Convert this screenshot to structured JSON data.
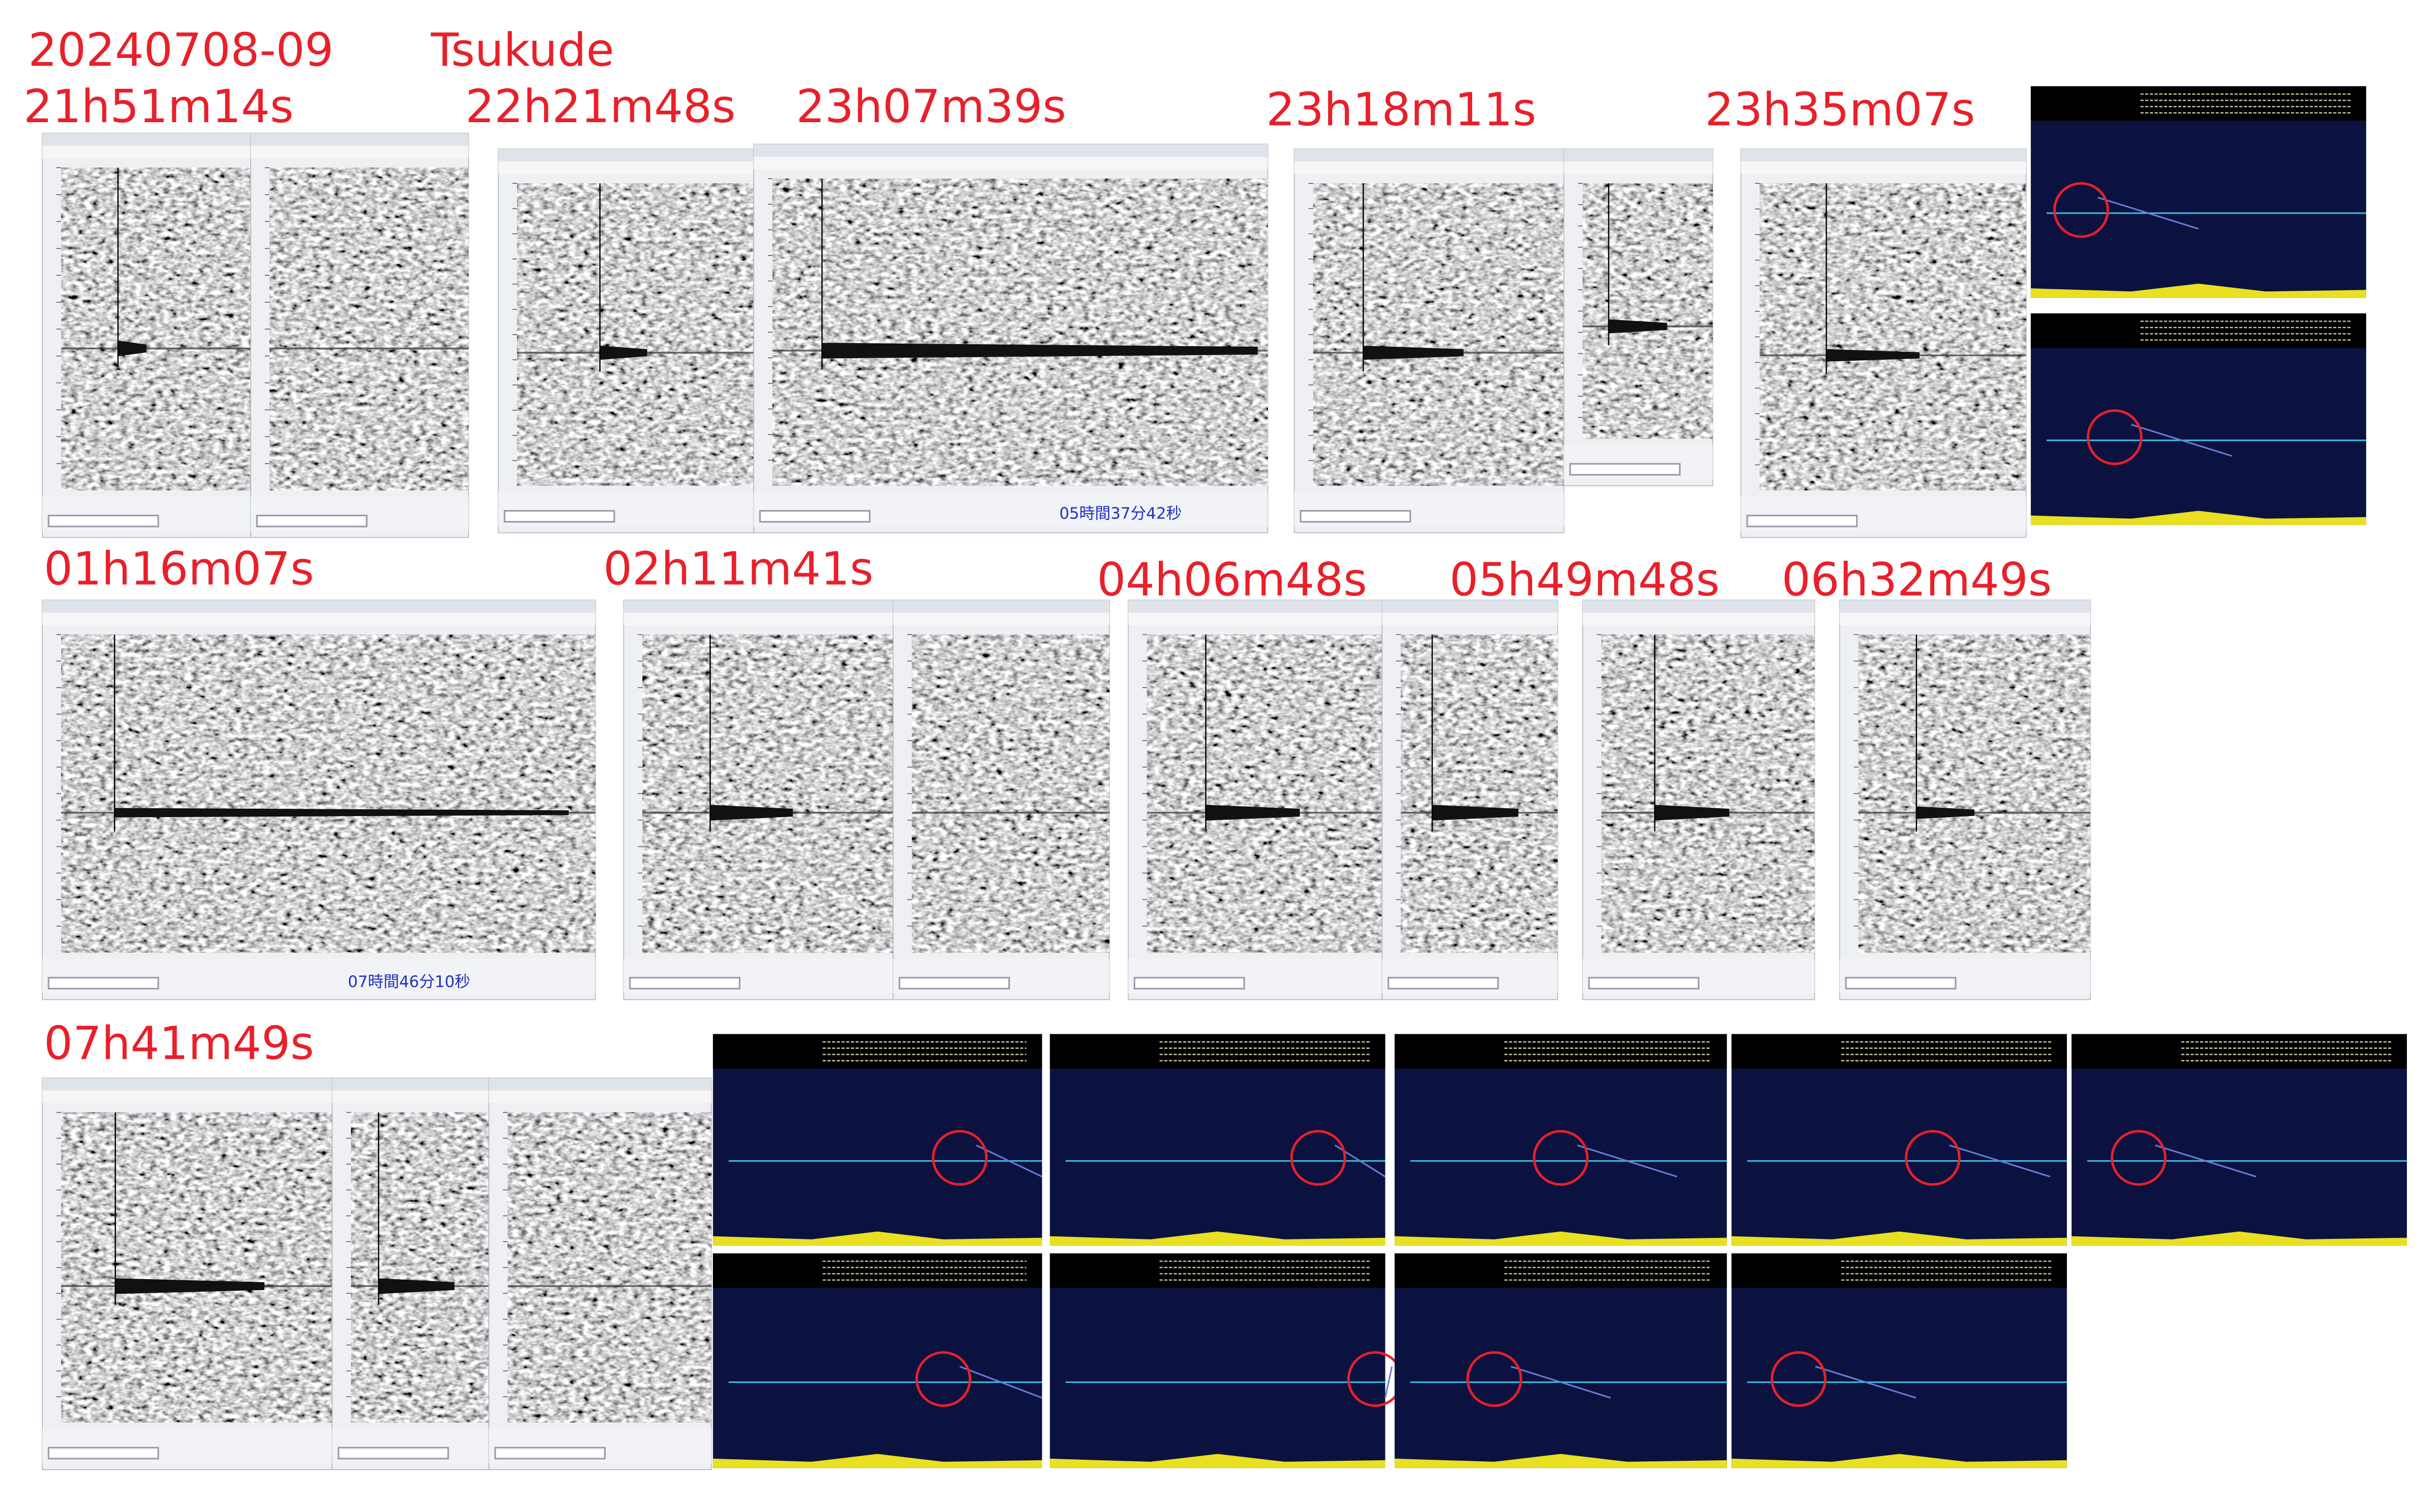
{
  "header": {
    "date": "20240708-09",
    "location": "Tsukude"
  },
  "labels": [
    "21h51m14s",
    "22h21m48s",
    "23h07m39s",
    "23h18m11s",
    "23h35m07s",
    "01h16m07s",
    "02h11m41s",
    "04h06m48s",
    "05h49m48s",
    "06h32m49s",
    "07h41m49s"
  ],
  "readouts": [
    "05時間37分42秒",
    "07時間46分10秒"
  ]
}
